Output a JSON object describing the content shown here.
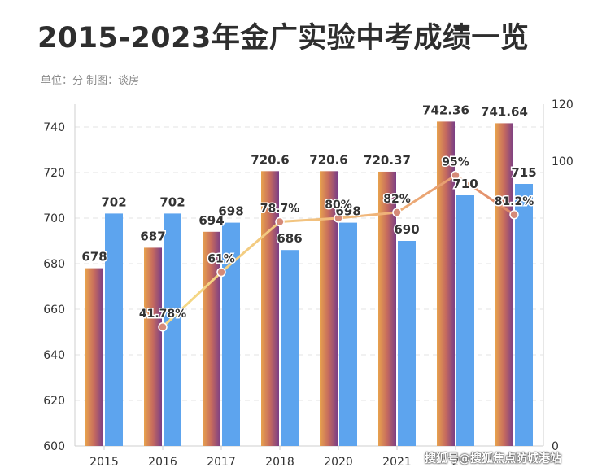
{
  "header": {
    "title": "2015-2023年金广实验中考成绩一览",
    "subtitle": "单位：分 制图：谈房"
  },
  "watermark": "搜狐号@搜狐焦点防城港站",
  "chart_data": {
    "type": "bar",
    "categories": [
      "2015",
      "2016",
      "2017",
      "2018",
      "2020",
      "2021",
      "2022",
      "2023"
    ],
    "visible_category_labels": [
      "2015",
      "2016",
      "2017",
      "2018",
      "2020",
      "2021",
      "2",
      ""
    ],
    "series": [
      {
        "kind": "bar",
        "axis": "left",
        "values": [
          678,
          687,
          694,
          720.6,
          720.6,
          720.37,
          742.36,
          741.64
        ],
        "labels": [
          "678",
          "687",
          "694",
          "720.6",
          "720.6",
          "720.37",
          "742.36",
          "741.64"
        ]
      },
      {
        "kind": "bar",
        "axis": "left",
        "values": [
          702,
          702,
          698,
          686,
          698,
          690,
          710,
          715
        ],
        "labels": [
          "702",
          "702",
          "698",
          "686",
          "698",
          "690",
          "710",
          "715"
        ]
      },
      {
        "kind": "line",
        "axis": "right",
        "values": [
          null,
          41.78,
          61,
          78.7,
          80,
          82,
          95,
          81.2
        ],
        "labels": [
          "",
          "41.78%",
          "61%",
          "78.7%",
          "80%",
          "82%",
          "95%",
          "81.2%"
        ]
      }
    ],
    "y_left": {
      "min": 600,
      "max": 750,
      "ticks": [
        600,
        620,
        640,
        660,
        680,
        700,
        720,
        740
      ]
    },
    "y_right": {
      "min": 0,
      "max": 120,
      "ticks": [
        0,
        100,
        120
      ]
    },
    "grid": true,
    "legend": "none",
    "colors": {
      "bar1_gradient": [
        "#e8a24e",
        "#c56a5e",
        "#7a3e86"
      ],
      "bar2": "#5da4ee",
      "line": "#f2c77a",
      "line_tail": "#e08a6a",
      "marker": "#d58a78",
      "label": "#333333",
      "axis_text": "#333333",
      "grid": "#e3e3e3"
    }
  }
}
